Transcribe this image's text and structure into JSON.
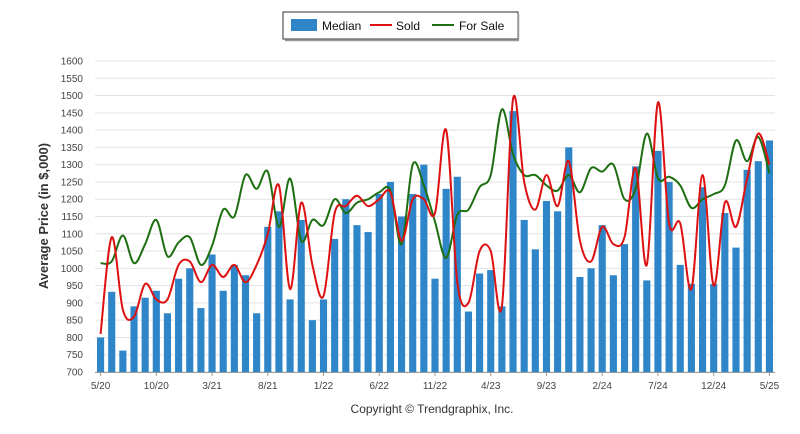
{
  "chart_data": {
    "type": "bar",
    "ylabel": "Average Price (in $,000)",
    "ylim": [
      700,
      1600
    ],
    "yticks": [
      700,
      750,
      800,
      850,
      900,
      950,
      1000,
      1050,
      1100,
      1150,
      1200,
      1250,
      1300,
      1350,
      1400,
      1450,
      1500,
      1550,
      1600
    ],
    "grid": true,
    "legend_position": "top-center",
    "categories": [
      "5/20",
      "6/20",
      "7/20",
      "8/20",
      "9/20",
      "10/20",
      "11/20",
      "12/20",
      "1/21",
      "2/21",
      "3/21",
      "4/21",
      "5/21",
      "6/21",
      "7/21",
      "8/21",
      "9/21",
      "10/21",
      "11/21",
      "12/21",
      "1/22",
      "2/22",
      "3/22",
      "4/22",
      "5/22",
      "6/22",
      "7/22",
      "8/22",
      "9/22",
      "10/22",
      "11/22",
      "12/22",
      "1/23",
      "2/23",
      "3/23",
      "4/23",
      "5/23",
      "6/23",
      "7/23",
      "8/23",
      "9/23",
      "10/23",
      "11/23",
      "12/23",
      "1/24",
      "2/24",
      "3/24",
      "4/24",
      "5/24",
      "6/24",
      "7/24",
      "8/24",
      "9/24",
      "10/24",
      "11/24",
      "12/24",
      "1/25",
      "2/25",
      "3/25",
      "4/25",
      "5/25"
    ],
    "xtick_labels": [
      "5/20",
      "10/20",
      "3/21",
      "8/21",
      "1/22",
      "6/22",
      "11/22",
      "4/23",
      "9/23",
      "2/24",
      "7/24",
      "12/24",
      "5/25"
    ],
    "series": [
      {
        "name": "Median",
        "type": "bar",
        "color": "#2e86c9",
        "values": [
          800,
          932,
          762,
          890,
          915,
          935,
          870,
          970,
          1000,
          885,
          1040,
          935,
          1010,
          980,
          870,
          1120,
          1165,
          910,
          1140,
          850,
          910,
          1085,
          1200,
          1125,
          1105,
          1215,
          1250,
          1150,
          1215,
          1300,
          970,
          1230,
          1265,
          875,
          985,
          995,
          890,
          1455,
          1140,
          1055,
          1195,
          1165,
          1350,
          975,
          1000,
          1125,
          980,
          1070,
          1295,
          965,
          1340,
          1250,
          1010,
          955,
          1235,
          955,
          1160,
          1060,
          1285,
          1310,
          1370
        ]
      },
      {
        "name": "Sold",
        "type": "line",
        "color": "#dd1111",
        "values": [
          810,
          1090,
          880,
          860,
          955,
          910,
          910,
          1010,
          1020,
          960,
          1010,
          975,
          1010,
          960,
          1010,
          1100,
          1240,
          940,
          1190,
          1010,
          920,
          1160,
          1180,
          1210,
          1180,
          1200,
          1220,
          1080,
          1200,
          1200,
          1160,
          1400,
          960,
          900,
          1050,
          1050,
          890,
          1490,
          1250,
          1170,
          1270,
          1180,
          1310,
          1080,
          1020,
          1120,
          1070,
          1090,
          1290,
          1010,
          1480,
          1130,
          1130,
          940,
          1270,
          950,
          1190,
          1120,
          1260,
          1390,
          1300
        ]
      },
      {
        "name": "For Sale",
        "type": "line",
        "color": "#1e6e12",
        "values": [
          1015,
          1020,
          1095,
          1015,
          1070,
          1140,
          1035,
          1075,
          1090,
          1010,
          1065,
          1170,
          1150,
          1270,
          1230,
          1280,
          1120,
          1260,
          1080,
          1140,
          1125,
          1200,
          1160,
          1190,
          1200,
          1220,
          1225,
          1070,
          1300,
          1240,
          1135,
          1030,
          1155,
          1170,
          1235,
          1270,
          1460,
          1330,
          1270,
          1270,
          1240,
          1225,
          1270,
          1220,
          1290,
          1280,
          1300,
          1200,
          1230,
          1390,
          1260,
          1265,
          1240,
          1175,
          1200,
          1215,
          1240,
          1370,
          1310,
          1380,
          1275
        ]
      }
    ]
  },
  "footer": {
    "copyright": "Copyright © Trendgraphix, Inc."
  }
}
